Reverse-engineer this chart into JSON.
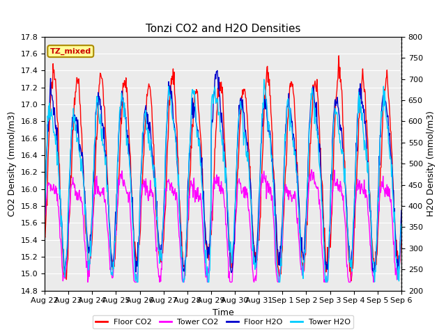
{
  "title": "Tonzi CO2 and H2O Densities",
  "xlabel": "Time",
  "ylabel_left": "CO2 Density (mmol/m3)",
  "ylabel_right": "H2O Density (mmol/m3)",
  "ylim_left": [
    14.8,
    17.8
  ],
  "ylim_right": [
    200,
    800
  ],
  "annotation_text": "TZ_mixed",
  "annotation_facecolor": "#FFFF99",
  "annotation_edgecolor": "#AA8800",
  "colors": {
    "floor_co2": "#FF0000",
    "tower_co2": "#FF00FF",
    "floor_h2o": "#0000CC",
    "tower_h2o": "#00CCFF"
  },
  "legend_labels": [
    "Floor CO2",
    "Tower CO2",
    "Floor H2O",
    "Tower H2O"
  ],
  "x_tick_labels": [
    "Aug 22",
    "Aug 23",
    "Aug 24",
    "Aug 25",
    "Aug 26",
    "Aug 27",
    "Aug 28",
    "Aug 29",
    "Aug 30",
    "Aug 31",
    "Sep 1",
    "Sep 2",
    "Sep 3",
    "Sep 4",
    "Sep 5",
    "Sep 6"
  ],
  "n_days": 15,
  "points_per_day": 48,
  "background_color": "#EBEBEB",
  "grid_color": "#FFFFFF",
  "fig_width": 6.4,
  "fig_height": 4.8,
  "dpi": 100
}
